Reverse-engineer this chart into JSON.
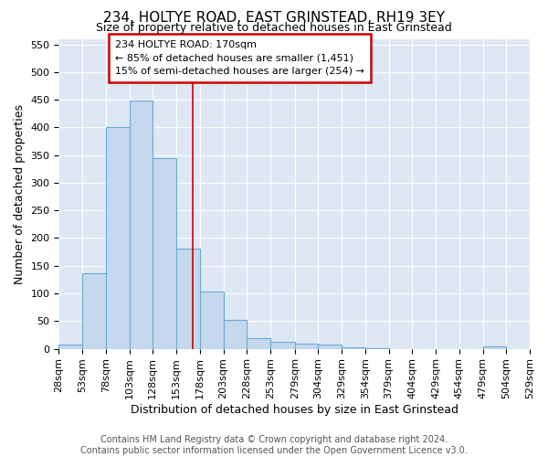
{
  "title": "234, HOLTYE ROAD, EAST GRINSTEAD, RH19 3EY",
  "subtitle": "Size of property relative to detached houses in East Grinstead",
  "xlabel": "Distribution of detached houses by size in East Grinstead",
  "ylabel": "Number of detached properties",
  "bin_edges": [
    28,
    53,
    78,
    103,
    128,
    153,
    178,
    203,
    228,
    253,
    279,
    304,
    329,
    354,
    379,
    404,
    429,
    454,
    479,
    504,
    529
  ],
  "bar_heights": [
    8,
    137,
    401,
    449,
    344,
    181,
    103,
    52,
    19,
    13,
    9,
    8,
    3,
    1,
    0,
    0,
    0,
    0,
    4,
    0
  ],
  "bar_color": "#c5d8ee",
  "bar_edge_color": "#6aaad4",
  "red_line_x": 170,
  "ylim": [
    0,
    560
  ],
  "yticks": [
    0,
    50,
    100,
    150,
    200,
    250,
    300,
    350,
    400,
    450,
    500,
    550
  ],
  "annotation_line1": "234 HOLTYE ROAD: 170sqm",
  "annotation_line2": "← 85% of detached houses are smaller (1,451)",
  "annotation_line3": "15% of semi-detached houses are larger (254) →",
  "annotation_box_color": "#ffffff",
  "annotation_box_edge_color": "#cc0000",
  "background_color": "#dde8f4",
  "footer_line1": "Contains HM Land Registry data © Crown copyright and database right 2024.",
  "footer_line2": "Contains public sector information licensed under the Open Government Licence v3.0.",
  "title_fontsize": 11,
  "subtitle_fontsize": 9,
  "label_fontsize": 9,
  "tick_fontsize": 8,
  "footer_fontsize": 7
}
